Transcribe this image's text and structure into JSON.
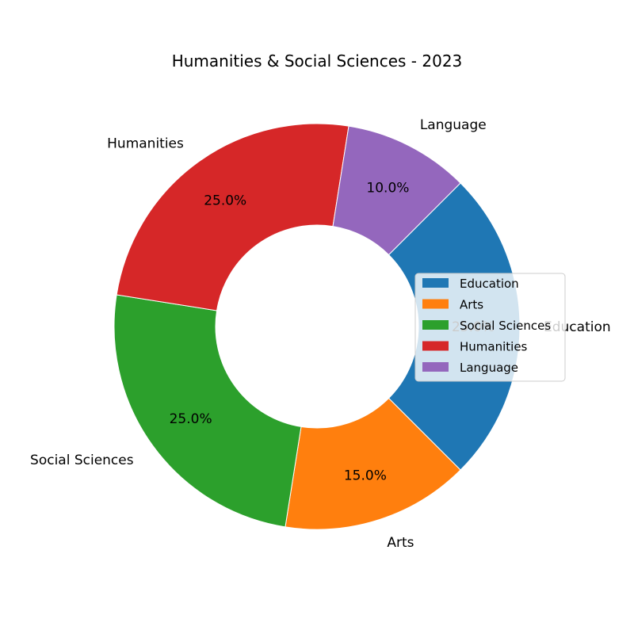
{
  "chart_data": {
    "type": "pie",
    "variant": "donut",
    "title": "Humanities & Social Sciences - 2023",
    "categories": [
      "Education",
      "Arts",
      "Social Sciences",
      "Humanities",
      "Language"
    ],
    "values": [
      25,
      15,
      25,
      25,
      10
    ],
    "percent_labels": [
      "25.0%",
      "15.0%",
      "25.0%",
      "25.0%",
      "10.0%"
    ],
    "colors": [
      "#1f77b4",
      "#ff7f0e",
      "#2ca02c",
      "#d62728",
      "#9467bd"
    ],
    "start_angle_deg": 45,
    "direction": "clockwise",
    "legend": {
      "position": "center-right",
      "entries": [
        "Education",
        "Arts",
        "Social Sciences",
        "Humanities",
        "Language"
      ]
    }
  }
}
